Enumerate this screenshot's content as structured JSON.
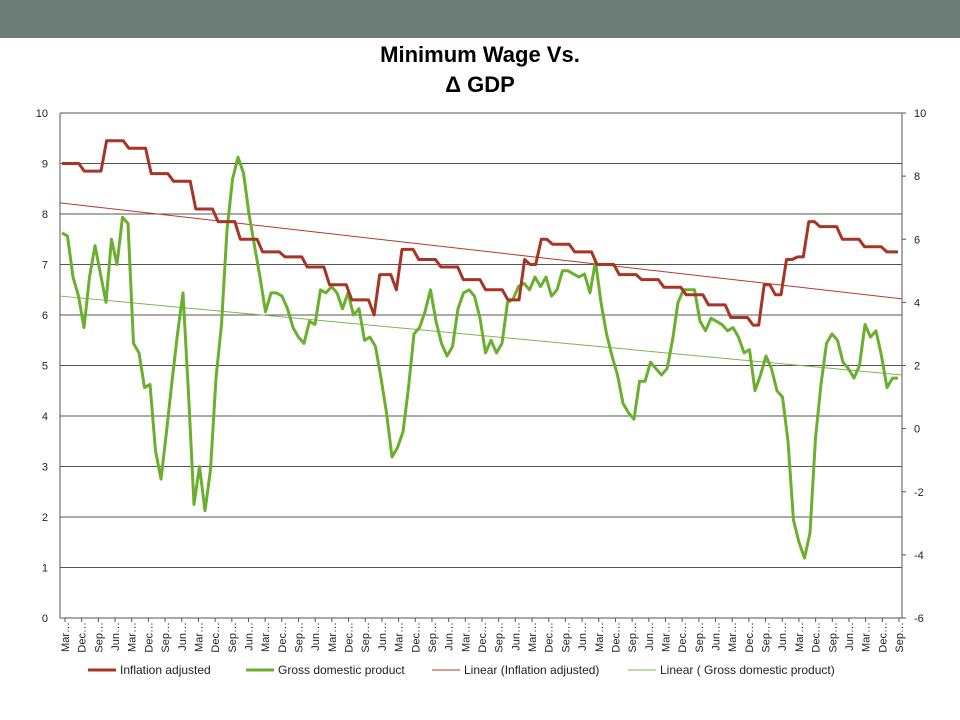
{
  "colors": {
    "header_bar": "#6b7d76",
    "inflation": "#a83424",
    "gdp": "#6aaf2e",
    "trend_inflation": "#b8382a",
    "trend_gdp": "#78b84a",
    "grid": "#555555"
  },
  "chart_data": {
    "type": "line",
    "title_line1": "Minimum Wage Vs.",
    "title_line2": "Δ GDP",
    "grid": true,
    "legend_position": "bottom",
    "y_left": {
      "min": 0,
      "max": 10,
      "ticks": [
        "0",
        "1",
        "2",
        "3",
        "4",
        "5",
        "6",
        "7",
        "8",
        "9",
        "10"
      ]
    },
    "y_right": {
      "min": -6,
      "max": 10,
      "ticks": [
        "-6",
        "-4",
        "-2",
        "0",
        "2",
        "4",
        "6",
        "8",
        "10"
      ]
    },
    "x_tick_labels": [
      "Mar…",
      "Dec…",
      "Sep…",
      "Jun…",
      "Mar…",
      "Dec…",
      "Sep…",
      "Jun…",
      "Mar…",
      "Dec…",
      "Sep…",
      "Jun…",
      "Mar…",
      "Dec…",
      "Sep…",
      "Jun…",
      "Mar…",
      "Dec…",
      "Sep…",
      "Jun…",
      "Mar…",
      "Dec…",
      "Sep…",
      "Jun…",
      "Mar…",
      "Dec…",
      "Sep…",
      "Jun…",
      "Mar…",
      "Dec…",
      "Sep…",
      "Jun…",
      "Mar…",
      "Dec…",
      "Sep…",
      "Jun…",
      "Mar…",
      "Dec…",
      "Sep…",
      "Jun…",
      "Mar…",
      "Dec…",
      "Sep…",
      "Jun…",
      "Mar…",
      "Dec…",
      "Sep…",
      "Jun…",
      "Mar…",
      "Dec…",
      "Sep…"
    ],
    "series": [
      {
        "name": "Inflation adjusted",
        "axis": "left",
        "values": [
          9.0,
          9.0,
          9.0,
          9.0,
          8.85,
          8.85,
          8.85,
          8.85,
          9.45,
          9.45,
          9.45,
          9.45,
          9.3,
          9.3,
          9.3,
          9.3,
          8.8,
          8.8,
          8.8,
          8.8,
          8.65,
          8.65,
          8.65,
          8.65,
          8.1,
          8.1,
          8.1,
          8.1,
          7.85,
          7.85,
          7.85,
          7.85,
          7.5,
          7.5,
          7.5,
          7.5,
          7.25,
          7.25,
          7.25,
          7.25,
          7.15,
          7.15,
          7.15,
          7.15,
          6.95,
          6.95,
          6.95,
          6.95,
          6.6,
          6.6,
          6.6,
          6.6,
          6.3,
          6.3,
          6.3,
          6.3,
          6.0,
          6.8,
          6.8,
          6.8,
          6.5,
          7.3,
          7.3,
          7.3,
          7.1,
          7.1,
          7.1,
          7.1,
          6.95,
          6.95,
          6.95,
          6.95,
          6.7,
          6.7,
          6.7,
          6.7,
          6.5,
          6.5,
          6.5,
          6.5,
          6.3,
          6.3,
          6.3,
          7.1,
          7.0,
          7.0,
          7.5,
          7.5,
          7.4,
          7.4,
          7.4,
          7.4,
          7.25,
          7.25,
          7.25,
          7.25,
          7.0,
          7.0,
          7.0,
          7.0,
          6.8,
          6.8,
          6.8,
          6.8,
          6.7,
          6.7,
          6.7,
          6.7,
          6.55,
          6.55,
          6.55,
          6.55,
          6.4,
          6.4,
          6.4,
          6.4,
          6.2,
          6.2,
          6.2,
          6.2,
          5.95,
          5.95,
          5.95,
          5.95,
          5.8,
          5.8,
          6.6,
          6.6,
          6.4,
          6.4,
          7.1,
          7.1,
          7.15,
          7.15,
          7.85,
          7.85,
          7.75,
          7.75,
          7.75,
          7.75,
          7.5,
          7.5,
          7.5,
          7.5,
          7.35,
          7.35,
          7.35,
          7.35,
          7.25,
          7.25,
          7.25
        ],
        "trend": {
          "name": "Linear (Inflation adjusted)",
          "start": 8.22,
          "end": 6.32
        }
      },
      {
        "name": "Gross domestic product",
        "axis": "right",
        "values": [
          6.2,
          6.1,
          4.8,
          4.2,
          3.2,
          4.8,
          5.8,
          4.9,
          4.0,
          6.0,
          5.2,
          6.7,
          6.5,
          2.7,
          2.4,
          1.3,
          1.4,
          -0.7,
          -1.6,
          -0.1,
          1.5,
          3.0,
          4.3,
          1.1,
          -2.4,
          -1.2,
          -2.6,
          -1.3,
          1.6,
          3.3,
          6.3,
          7.9,
          8.6,
          8.1,
          6.8,
          5.8,
          4.8,
          3.7,
          4.3,
          4.3,
          4.2,
          3.8,
          3.2,
          2.9,
          2.7,
          3.4,
          3.3,
          4.4,
          4.3,
          4.5,
          4.3,
          3.8,
          4.3,
          3.6,
          3.8,
          2.8,
          2.9,
          2.6,
          1.6,
          0.5,
          -0.9,
          -0.6,
          -0.1,
          1.3,
          3.0,
          3.2,
          3.7,
          4.4,
          3.4,
          2.7,
          2.3,
          2.6,
          3.8,
          4.3,
          4.4,
          4.2,
          3.5,
          2.4,
          2.8,
          2.4,
          2.7,
          4.0,
          4.1,
          4.5,
          4.6,
          4.4,
          4.8,
          4.5,
          4.8,
          4.2,
          4.4,
          5.0,
          5.0,
          4.9,
          4.8,
          4.9,
          4.3,
          5.3,
          4.0,
          3.0,
          2.3,
          1.7,
          0.8,
          0.5,
          0.3,
          1.5,
          1.5,
          2.1,
          1.9,
          1.7,
          1.9,
          2.8,
          4.0,
          4.4,
          4.4,
          4.4,
          3.4,
          3.1,
          3.5,
          3.4,
          3.3,
          3.1,
          3.2,
          2.9,
          2.4,
          2.5,
          1.2,
          1.7,
          2.3,
          1.9,
          1.2,
          1.0,
          -0.4,
          -2.9,
          -3.6,
          -4.1,
          -3.3,
          -0.3,
          1.4,
          2.7,
          3.0,
          2.8,
          2.1,
          1.9,
          1.6,
          2.0,
          3.3,
          2.9,
          3.1,
          2.3,
          1.3,
          1.6,
          1.6
        ],
        "trend": {
          "name": "Linear (  Gross domestic product)",
          "start": 4.2,
          "end": 1.7
        }
      }
    ]
  }
}
